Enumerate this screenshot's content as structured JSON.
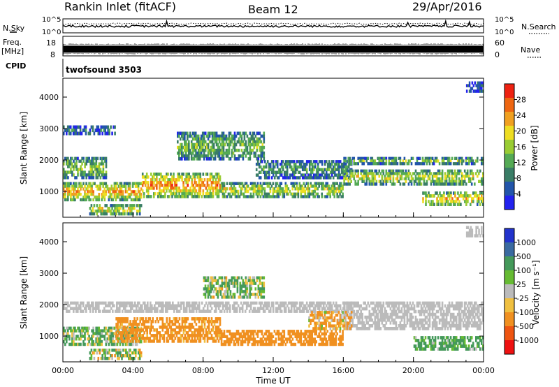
{
  "header": {
    "station": "Rankin Inlet (fitACF)",
    "beam": "Beam 12",
    "date": "29/Apr/2016"
  },
  "panels": {
    "nsky": {
      "left_label": "N.Sky",
      "right_label": "N.Search",
      "left_ticks": [
        "10^5",
        "10^0"
      ],
      "right_ticks": [
        "10^5",
        "10^0"
      ]
    },
    "freq": {
      "left_label": "Freq.",
      "left_unit": "[MHz]",
      "left_ticks": [
        "18",
        "8"
      ],
      "right_label": "Nave",
      "right_ticks": [
        "60",
        "0"
      ]
    },
    "cpid": {
      "label": "CPID",
      "program": "twofsound 3503"
    }
  },
  "colors": {
    "power_scale": [
      "#2222ee",
      "#2255aa",
      "#3a7d66",
      "#55aa55",
      "#99cc33",
      "#eedd22",
      "#f0a020",
      "#ee6611",
      "#ee2211"
    ],
    "velocity_scale": [
      "#ee1111",
      "#ee5511",
      "#f09020",
      "#f0c040",
      "#bbbbbb",
      "#66bb33",
      "#44995a",
      "#3a6aa0",
      "#2233cc"
    ]
  },
  "chart_data": [
    {
      "type": "heatmap",
      "title": "",
      "quantity": "Power",
      "ylabel": "Slant Range [km]",
      "xlabel": "",
      "x_tick_labels": [
        "00:00",
        "04:00",
        "08:00",
        "12:00",
        "16:00",
        "20:00",
        "00:00"
      ],
      "xlim_hours": [
        0,
        24
      ],
      "y_ticks": [
        1000,
        2000,
        3000,
        4000
      ],
      "ylim": [
        180,
        4600
      ],
      "colorbar": {
        "label": "Power [dB]",
        "ticks": [
          "4",
          "8",
          "12",
          "16",
          "20",
          "24",
          "28"
        ],
        "range": [
          0,
          32
        ]
      },
      "bands": [
        {
          "hour_start": 0.0,
          "hour_end": 4.5,
          "range_low": 700,
          "range_high": 1300,
          "level": 0.7
        },
        {
          "hour_start": 0.0,
          "hour_end": 2.5,
          "range_low": 1400,
          "range_high": 2100,
          "level": 0.45
        },
        {
          "hour_start": 0.0,
          "hour_end": 3.0,
          "range_low": 2800,
          "range_high": 3100,
          "level": 0.2
        },
        {
          "hour_start": 1.5,
          "hour_end": 4.5,
          "range_low": 250,
          "range_high": 600,
          "level": 0.65
        },
        {
          "hour_start": 4.5,
          "hour_end": 9.0,
          "range_low": 800,
          "range_high": 1600,
          "level": 0.75
        },
        {
          "hour_start": 6.5,
          "hour_end": 11.5,
          "range_low": 2000,
          "range_high": 2900,
          "level": 0.4
        },
        {
          "hour_start": 9.0,
          "hour_end": 16.0,
          "range_low": 800,
          "range_high": 1300,
          "level": 0.55
        },
        {
          "hour_start": 11.0,
          "hour_end": 16.5,
          "range_low": 1400,
          "range_high": 2000,
          "level": 0.3
        },
        {
          "hour_start": 16.0,
          "hour_end": 24.0,
          "range_low": 1200,
          "range_high": 1700,
          "level": 0.55
        },
        {
          "hour_start": 16.0,
          "hour_end": 24.0,
          "range_low": 1850,
          "range_high": 2100,
          "level": 0.45
        },
        {
          "hour_start": 20.5,
          "hour_end": 24.0,
          "range_low": 550,
          "range_high": 1000,
          "level": 0.7
        },
        {
          "hour_start": 23.0,
          "hour_end": 24.0,
          "range_low": 4150,
          "range_high": 4500,
          "level": 0.15
        }
      ]
    },
    {
      "type": "heatmap",
      "title": "",
      "quantity": "Velocity",
      "ylabel": "Slant Range [km]",
      "xlabel": "Time UT",
      "x_tick_labels": [
        "00:00",
        "04:00",
        "08:00",
        "12:00",
        "16:00",
        "20:00",
        "00:00"
      ],
      "xlim_hours": [
        0,
        24
      ],
      "y_ticks": [
        1000,
        2000,
        3000,
        4000
      ],
      "ylim": [
        180,
        4600
      ],
      "colorbar": {
        "label": "Velocity [m s⁻¹]",
        "ticks": [
          "1000",
          "500",
          "100",
          "25",
          "-25",
          "-100",
          "-500",
          "-1000"
        ],
        "range": [
          -1500,
          1500
        ]
      },
      "bands": [
        {
          "hour_start": 0.0,
          "hour_end": 16.5,
          "range_low": 1750,
          "range_high": 2100,
          "velocity": 0
        },
        {
          "hour_start": 16.0,
          "hour_end": 24.0,
          "range_low": 1200,
          "range_high": 2100,
          "velocity": 0
        },
        {
          "hour_start": 0.0,
          "hour_end": 4.5,
          "range_low": 700,
          "range_high": 1300,
          "velocity": 120
        },
        {
          "hour_start": 1.5,
          "hour_end": 4.5,
          "range_low": 250,
          "range_high": 600,
          "velocity": 60
        },
        {
          "hour_start": 3.0,
          "hour_end": 9.0,
          "range_low": 800,
          "range_high": 1600,
          "velocity": -250
        },
        {
          "hour_start": 8.0,
          "hour_end": 11.5,
          "range_low": 2200,
          "range_high": 2900,
          "velocity": 80
        },
        {
          "hour_start": 9.0,
          "hour_end": 16.0,
          "range_low": 700,
          "range_high": 1200,
          "velocity": -300
        },
        {
          "hour_start": 14.0,
          "hour_end": 16.5,
          "range_low": 1200,
          "range_high": 1800,
          "velocity": -150
        },
        {
          "hour_start": 20.0,
          "hour_end": 24.0,
          "range_low": 550,
          "range_high": 1000,
          "velocity": 200
        },
        {
          "hour_start": 23.0,
          "hour_end": 24.0,
          "range_low": 4150,
          "range_high": 4500,
          "velocity": 0
        }
      ]
    }
  ]
}
